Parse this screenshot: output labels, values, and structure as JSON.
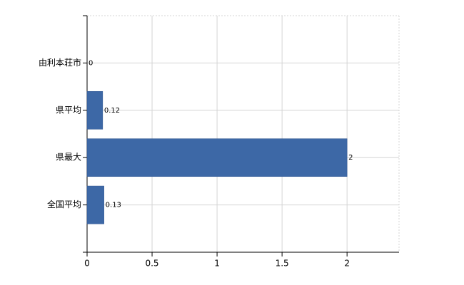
{
  "chart_data": {
    "type": "bar",
    "orientation": "horizontal",
    "categories": [
      "由利本荘市",
      "県平均",
      "県最大",
      "全国平均"
    ],
    "values": [
      0,
      0.12,
      2,
      0.13
    ],
    "color": "#3d68a6",
    "xlim": [
      0,
      2.4
    ],
    "xticks": [
      0,
      0.5,
      1,
      1.5,
      2
    ],
    "grid": true
  }
}
